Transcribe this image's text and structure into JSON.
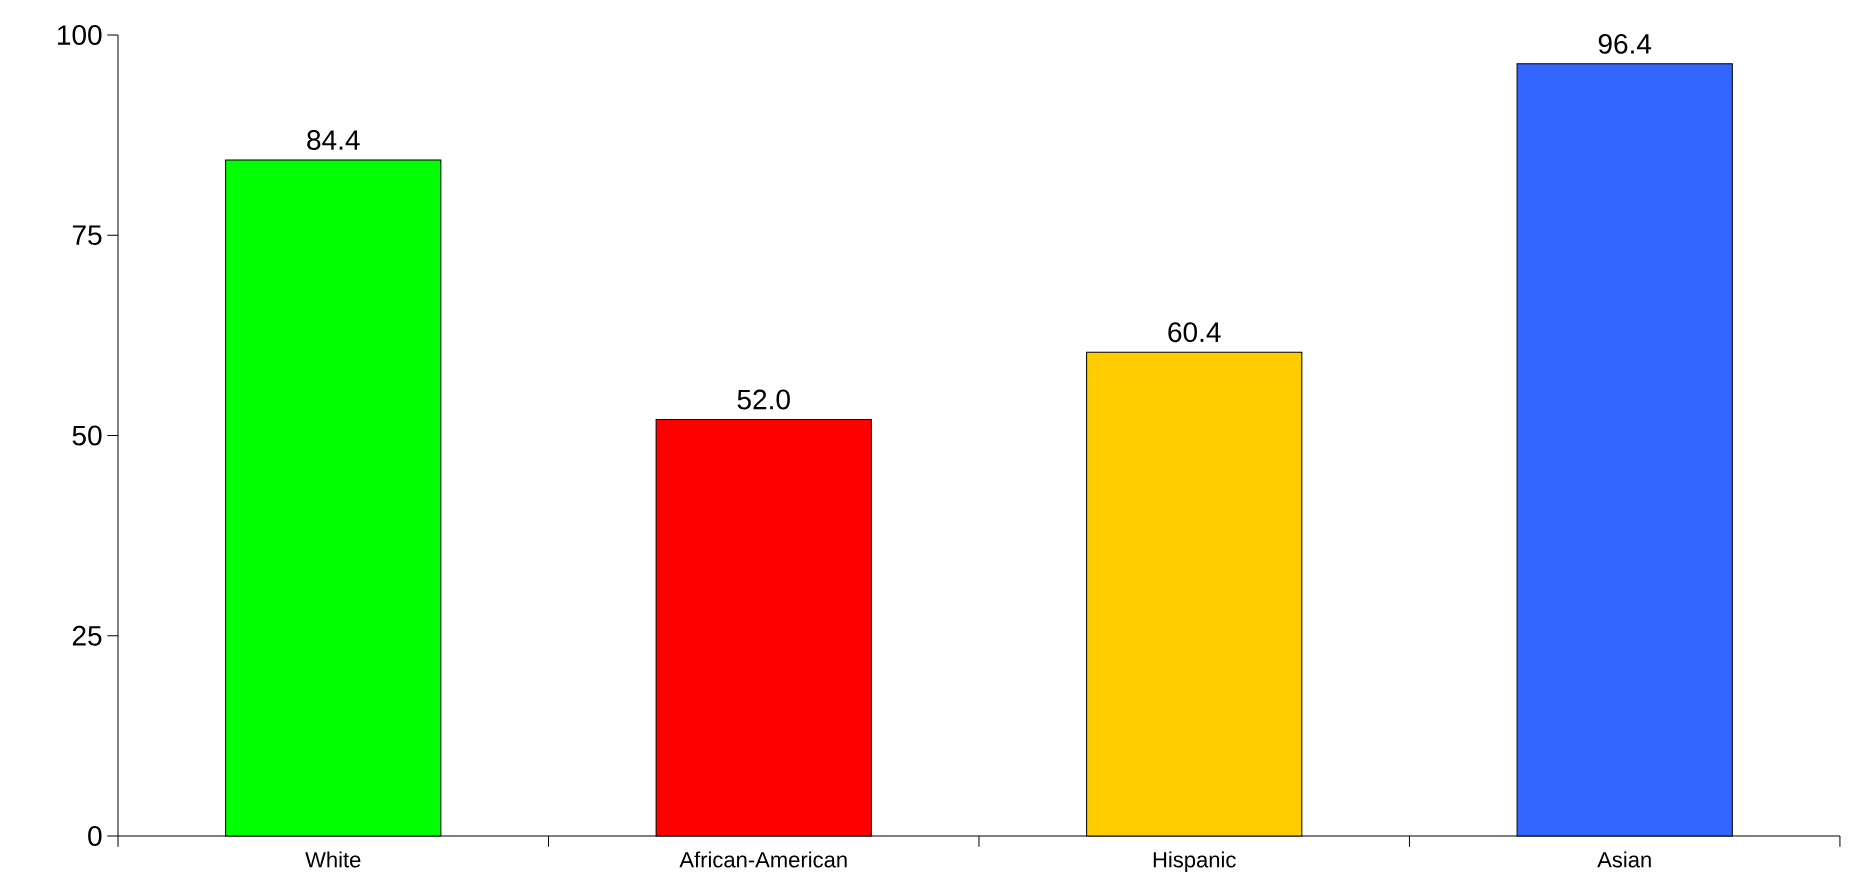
{
  "chart_data": {
    "type": "bar",
    "categories": [
      "White",
      "African-American",
      "Hispanic",
      "Asian"
    ],
    "values": [
      84.4,
      52.0,
      60.4,
      96.4
    ],
    "value_labels": [
      "84.4",
      "52.0",
      "60.4",
      "96.4"
    ],
    "colors": [
      "#00ff00",
      "#ff0000",
      "#ffcc00",
      "#3366ff"
    ],
    "ylim": [
      0,
      100
    ],
    "yticks": [
      0,
      25,
      50,
      75,
      100
    ]
  }
}
